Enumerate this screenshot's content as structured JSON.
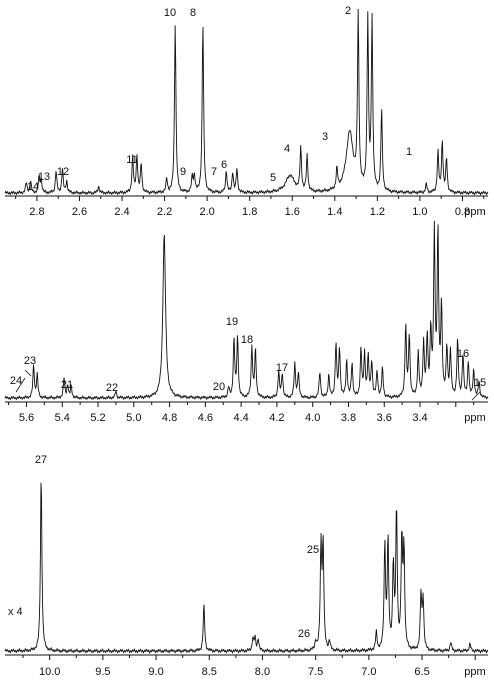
{
  "chart_data": [
    {
      "type": "line",
      "title": "",
      "xlabel": "ppm",
      "ylabel": "",
      "xlim": [
        2.95,
        0.68
      ],
      "x_reversed": true,
      "xticks": [
        2.8,
        2.6,
        2.4,
        2.2,
        2.0,
        1.8,
        1.6,
        1.4,
        1.2,
        1.0,
        0.8
      ],
      "xtick_labels": [
        "2.8",
        "2.6",
        "2.4",
        "2.2",
        "2.0",
        "1.8",
        "1.6",
        "1.4",
        "1.2",
        "1.0",
        "0.8"
      ],
      "scale_label": "",
      "peak_labels": [
        {
          "label": "14",
          "x": 2.85
        },
        {
          "label": "13",
          "x": 2.79
        },
        {
          "label": "12",
          "x": 2.7
        },
        {
          "label": "11",
          "x": 2.33
        },
        {
          "label": "9",
          "x": 2.07
        },
        {
          "label": "10",
          "x": 2.15
        },
        {
          "label": "8",
          "x": 2.02
        },
        {
          "label": "7",
          "x": 1.91
        },
        {
          "label": "6",
          "x": 1.87
        },
        {
          "label": "5",
          "x": 1.61
        },
        {
          "label": "4",
          "x": 1.55
        },
        {
          "label": "3",
          "x": 1.32
        },
        {
          "label": "2",
          "x": 1.23
        },
        {
          "label": "1",
          "x": 0.9
        }
      ],
      "peaks": [
        {
          "x": 2.85,
          "h": 0.06
        },
        {
          "x": 2.83,
          "h": 0.07
        },
        {
          "x": 2.79,
          "h": 0.09
        },
        {
          "x": 2.78,
          "h": 0.08
        },
        {
          "x": 2.71,
          "h": 0.13
        },
        {
          "x": 2.68,
          "h": 0.14
        },
        {
          "x": 2.66,
          "h": 0.07
        },
        {
          "x": 2.51,
          "h": 0.04
        },
        {
          "x": 2.35,
          "h": 0.21
        },
        {
          "x": 2.33,
          "h": 0.22
        },
        {
          "x": 2.31,
          "h": 0.17
        },
        {
          "x": 2.19,
          "h": 0.08
        },
        {
          "x": 2.15,
          "h": 1.0
        },
        {
          "x": 2.07,
          "h": 0.09
        },
        {
          "x": 2.06,
          "h": 0.1
        },
        {
          "x": 2.02,
          "h": 1.0
        },
        {
          "x": 1.91,
          "h": 0.13
        },
        {
          "x": 1.88,
          "h": 0.12
        },
        {
          "x": 1.86,
          "h": 0.14
        },
        {
          "x": 1.61,
          "h": 0.1,
          "w": 0.025
        },
        {
          "x": 1.56,
          "h": 0.25
        },
        {
          "x": 1.53,
          "h": 0.21
        },
        {
          "x": 1.39,
          "h": 0.12
        },
        {
          "x": 1.33,
          "h": 0.35,
          "w": 0.02
        },
        {
          "x": 1.29,
          "h": 1.0
        },
        {
          "x": 1.245,
          "h": 1.0
        },
        {
          "x": 1.225,
          "h": 1.0
        },
        {
          "x": 1.18,
          "h": 0.48
        },
        {
          "x": 0.97,
          "h": 0.05
        },
        {
          "x": 0.915,
          "h": 0.24
        },
        {
          "x": 0.895,
          "h": 0.3
        },
        {
          "x": 0.875,
          "h": 0.2
        }
      ]
    },
    {
      "type": "line",
      "title": "",
      "xlabel": "ppm",
      "ylabel": "",
      "xlim": [
        5.72,
        3.02
      ],
      "x_reversed": true,
      "xticks": [
        5.6,
        5.4,
        5.2,
        5.0,
        4.8,
        4.6,
        4.4,
        4.2,
        4.0,
        3.8,
        3.6,
        3.4
      ],
      "xtick_labels": [
        "5.6",
        "5.4",
        "5.2",
        "5.0",
        "4.8",
        "4.6",
        "4.4",
        "4.2",
        "4.0",
        "3.8",
        "3.6",
        "3.4"
      ],
      "scale_label": "",
      "peak_labels": [
        {
          "label": "24",
          "x": 5.57
        },
        {
          "label": "23",
          "x": 5.55
        },
        {
          "label": "21",
          "x": 5.37
        },
        {
          "label": "22",
          "x": 5.1
        },
        {
          "label": "20",
          "x": 4.45
        },
        {
          "label": "19",
          "x": 4.43
        },
        {
          "label": "18",
          "x": 4.33
        },
        {
          "label": "17",
          "x": 4.19
        },
        {
          "label": "16",
          "x": 3.13
        },
        {
          "label": "15",
          "x": 3.06
        }
      ],
      "peaks": [
        {
          "x": 5.56,
          "h": 0.2
        },
        {
          "x": 5.54,
          "h": 0.14
        },
        {
          "x": 5.39,
          "h": 0.12
        },
        {
          "x": 5.37,
          "h": 0.08
        },
        {
          "x": 5.35,
          "h": 0.07
        },
        {
          "x": 5.1,
          "h": 0.04
        },
        {
          "x": 4.83,
          "h": 1.0,
          "w": 0.009
        },
        {
          "x": 4.47,
          "h": 0.06
        },
        {
          "x": 4.44,
          "h": 0.36
        },
        {
          "x": 4.42,
          "h": 0.37
        },
        {
          "x": 4.34,
          "h": 0.31
        },
        {
          "x": 4.32,
          "h": 0.29
        },
        {
          "x": 4.19,
          "h": 0.16
        },
        {
          "x": 4.17,
          "h": 0.15
        },
        {
          "x": 4.1,
          "h": 0.21
        },
        {
          "x": 4.08,
          "h": 0.15
        },
        {
          "x": 3.96,
          "h": 0.16
        },
        {
          "x": 3.91,
          "h": 0.14
        },
        {
          "x": 3.87,
          "h": 0.33
        },
        {
          "x": 3.85,
          "h": 0.3
        },
        {
          "x": 3.81,
          "h": 0.23
        },
        {
          "x": 3.78,
          "h": 0.21
        },
        {
          "x": 3.73,
          "h": 0.3
        },
        {
          "x": 3.71,
          "h": 0.26
        },
        {
          "x": 3.69,
          "h": 0.25
        },
        {
          "x": 3.67,
          "h": 0.22
        },
        {
          "x": 3.64,
          "h": 0.16
        },
        {
          "x": 3.61,
          "h": 0.18
        },
        {
          "x": 3.48,
          "h": 0.44
        },
        {
          "x": 3.46,
          "h": 0.38
        },
        {
          "x": 3.41,
          "h": 0.27
        },
        {
          "x": 3.38,
          "h": 0.33
        },
        {
          "x": 3.36,
          "h": 0.36
        },
        {
          "x": 3.34,
          "h": 0.4
        },
        {
          "x": 3.32,
          "h": 1.0
        },
        {
          "x": 3.3,
          "h": 1.0
        },
        {
          "x": 3.28,
          "h": 0.55
        },
        {
          "x": 3.25,
          "h": 0.3
        },
        {
          "x": 3.23,
          "h": 0.28
        },
        {
          "x": 3.19,
          "h": 0.35
        },
        {
          "x": 3.16,
          "h": 0.26
        },
        {
          "x": 3.13,
          "h": 0.22
        },
        {
          "x": 3.1,
          "h": 0.17
        },
        {
          "x": 3.07,
          "h": 0.1
        }
      ]
    },
    {
      "type": "line",
      "title": "",
      "xlabel": "ppm",
      "ylabel": "",
      "xlim": [
        10.42,
        5.88
      ],
      "x_reversed": true,
      "xticks": [
        10.0,
        9.5,
        9.0,
        8.5,
        8.0,
        7.5,
        7.0,
        6.5
      ],
      "xtick_labels": [
        "10.0",
        "9.5",
        "9.0",
        "8.5",
        "8.0",
        "7.5",
        "7.0",
        "6.5"
      ],
      "scale_label": "x 4",
      "peak_labels": [
        {
          "label": "27",
          "x": 10.08
        },
        {
          "label": "26",
          "x": 7.49
        },
        {
          "label": "25",
          "x": 7.44
        }
      ],
      "peaks": [
        {
          "x": 10.08,
          "h": 1.0
        },
        {
          "x": 8.55,
          "h": 0.26
        },
        {
          "x": 8.09,
          "h": 0.07
        },
        {
          "x": 8.07,
          "h": 0.07
        },
        {
          "x": 8.04,
          "h": 0.07
        },
        {
          "x": 7.5,
          "h": 0.05
        },
        {
          "x": 7.45,
          "h": 0.58
        },
        {
          "x": 7.43,
          "h": 0.59
        },
        {
          "x": 7.37,
          "h": 0.05
        },
        {
          "x": 6.93,
          "h": 0.1
        },
        {
          "x": 6.85,
          "h": 0.59
        },
        {
          "x": 6.82,
          "h": 0.61
        },
        {
          "x": 6.77,
          "h": 0.47
        },
        {
          "x": 6.74,
          "h": 0.79
        },
        {
          "x": 6.69,
          "h": 0.61
        },
        {
          "x": 6.67,
          "h": 0.56
        },
        {
          "x": 6.51,
          "h": 0.31
        },
        {
          "x": 6.49,
          "h": 0.29
        },
        {
          "x": 6.23,
          "h": 0.05
        },
        {
          "x": 6.05,
          "h": 0.04
        }
      ]
    }
  ]
}
